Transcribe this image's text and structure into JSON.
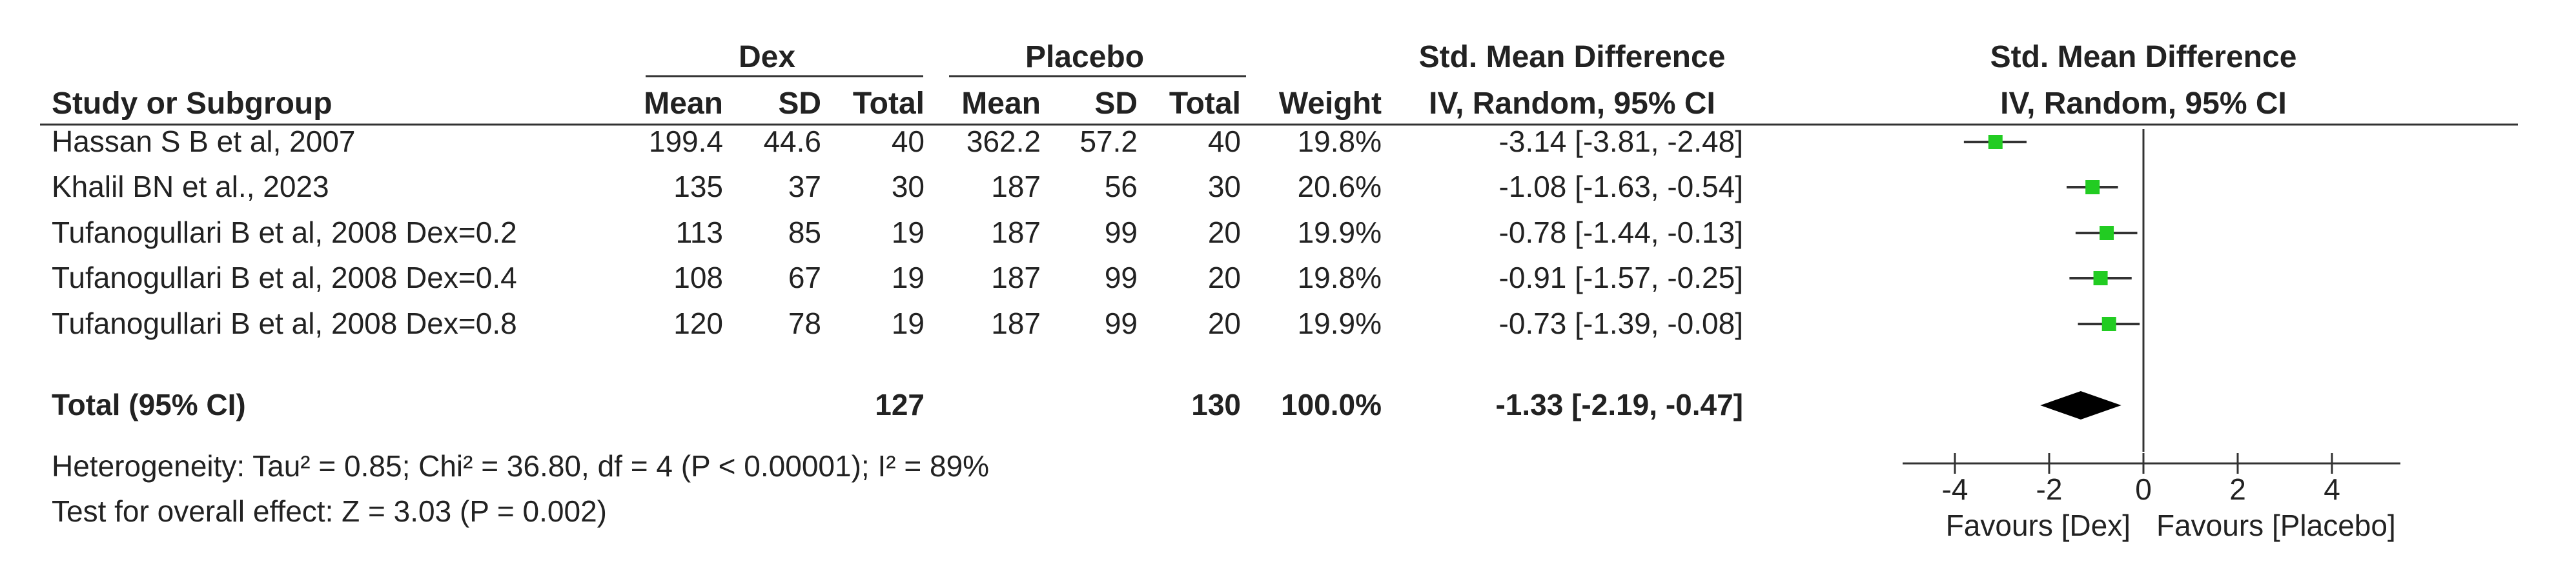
{
  "chart_data": {
    "type": "forest",
    "header": {
      "study_col": "Study or Subgroup",
      "group1": "Dex",
      "group2": "Placebo",
      "mean": "Mean",
      "sd": "SD",
      "total": "Total",
      "weight": "Weight",
      "smd_title": "Std. Mean Difference",
      "smd_method": "IV, Random, 95% CI"
    },
    "studies": [
      {
        "name": "Hassan S B et al, 2007",
        "m1": "199.4",
        "sd1": "44.6",
        "n1": "40",
        "m2": "362.2",
        "sd2": "57.2",
        "n2": "40",
        "weight": "19.8%",
        "ci_text": "-3.14 [-3.81, -2.48]",
        "est": -3.14,
        "lo": -3.81,
        "hi": -2.48
      },
      {
        "name": "Khalil BN et al., 2023",
        "m1": "135",
        "sd1": "37",
        "n1": "30",
        "m2": "187",
        "sd2": "56",
        "n2": "30",
        "weight": "20.6%",
        "ci_text": "-1.08 [-1.63, -0.54]",
        "est": -1.08,
        "lo": -1.63,
        "hi": -0.54
      },
      {
        "name": "Tufanogullari B et al, 2008 Dex=0.2",
        "m1": "113",
        "sd1": "85",
        "n1": "19",
        "m2": "187",
        "sd2": "99",
        "n2": "20",
        "weight": "19.9%",
        "ci_text": "-0.78 [-1.44, -0.13]",
        "est": -0.78,
        "lo": -1.44,
        "hi": -0.13
      },
      {
        "name": "Tufanogullari B et al, 2008 Dex=0.4",
        "m1": "108",
        "sd1": "67",
        "n1": "19",
        "m2": "187",
        "sd2": "99",
        "n2": "20",
        "weight": "19.8%",
        "ci_text": "-0.91 [-1.57, -0.25]",
        "est": -0.91,
        "lo": -1.57,
        "hi": -0.25
      },
      {
        "name": "Tufanogullari B et al, 2008 Dex=0.8",
        "m1": "120",
        "sd1": "78",
        "n1": "19",
        "m2": "187",
        "sd2": "99",
        "n2": "20",
        "weight": "19.9%",
        "ci_text": "-0.73 [-1.39, -0.08]",
        "est": -0.73,
        "lo": -1.39,
        "hi": -0.08
      }
    ],
    "total": {
      "label": "Total (95% CI)",
      "n1": "127",
      "n2": "130",
      "weight": "100.0%",
      "ci_text": "-1.33 [-2.19, -0.47]",
      "est": -1.33,
      "lo": -2.19,
      "hi": -0.47
    },
    "heterogeneity": "Heterogeneity: Tau² = 0.85; Chi² = 36.80, df = 4 (P < 0.00001); I² = 89%",
    "overall_effect": "Test for overall effect: Z = 3.03 (P = 0.002)",
    "axis": {
      "xlim": [
        -6,
        6
      ],
      "ticks": [
        -4,
        -2,
        0,
        2,
        4
      ],
      "tick_labels": [
        "-4",
        "-2",
        "0",
        "2",
        "4"
      ],
      "favours_left": "Favours [Dex]",
      "favours_right": "Favours [Placebo]"
    },
    "colors": {
      "marker": "#22cc22",
      "diamond": "#000000",
      "lines": "#333333"
    }
  }
}
